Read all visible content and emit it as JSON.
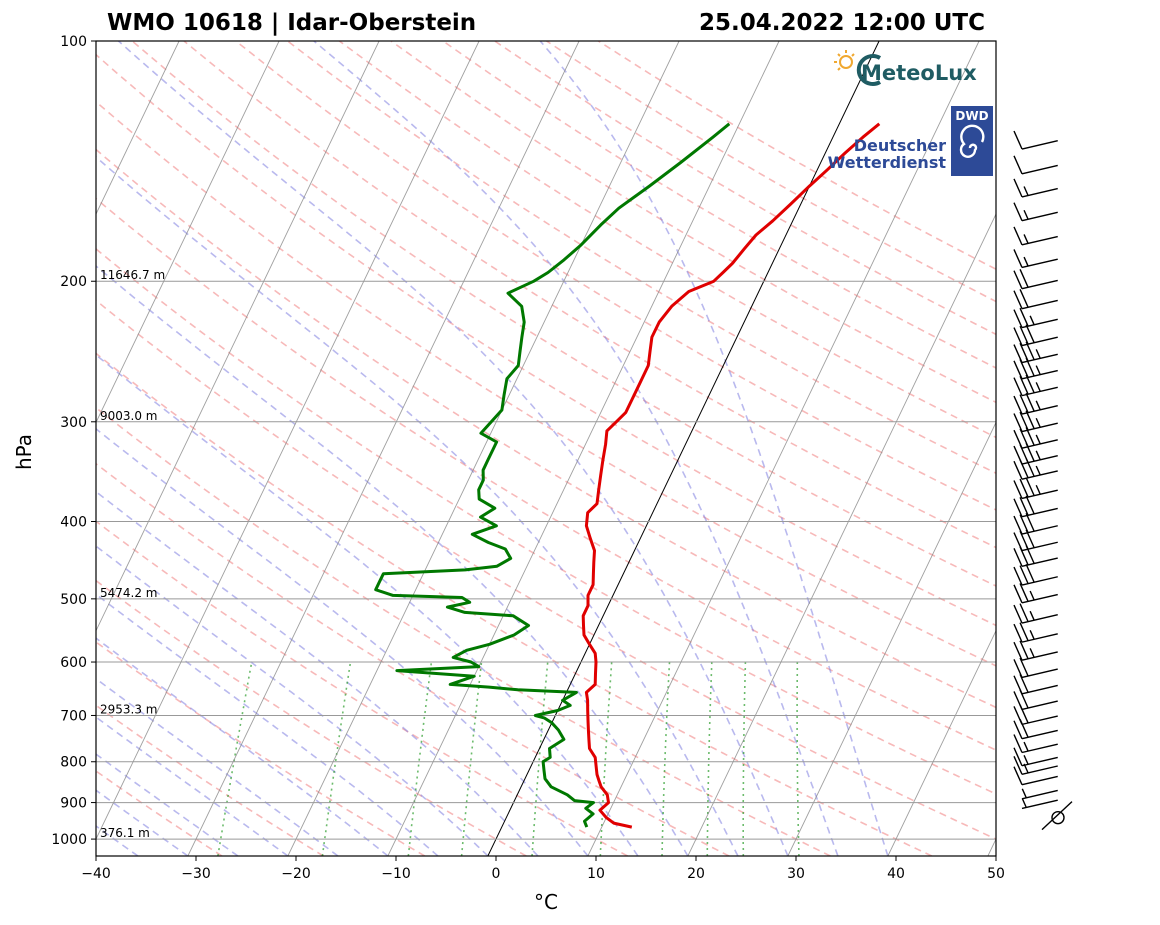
{
  "chart_data": {
    "type": "line",
    "subtype": "skew-t log-p",
    "title_left": "WMO 10618 | Idar-Oberstein",
    "title_right": "25.04.2022 12:00 UTC",
    "xlabel": "°C",
    "ylabel": "hPa",
    "xlim": [
      -40,
      50
    ],
    "ylim": [
      1050,
      100
    ],
    "y_scale": "log",
    "x_ticks": [
      -40,
      -30,
      -20,
      -10,
      0,
      10,
      20,
      30,
      40,
      50
    ],
    "x_tick_labels": [
      "−40",
      "−30",
      "−20",
      "−10",
      "0",
      "10",
      "20",
      "30",
      "40",
      "50"
    ],
    "y_ticks": [
      100,
      200,
      300,
      400,
      500,
      600,
      700,
      800,
      900,
      1000
    ],
    "y_tick_labels": [
      "100",
      "200",
      "300",
      "400",
      "500",
      "600",
      "700",
      "800",
      "900",
      "1000"
    ],
    "grid": true,
    "height_labels": [
      {
        "p": 1000,
        "text": "376.1 m"
      },
      {
        "p": 700,
        "text": "2953.3 m"
      },
      {
        "p": 500,
        "text": "5474.2 m"
      },
      {
        "p": 300,
        "text": "9003.0 m"
      },
      {
        "p": 200,
        "text": "11646.7 m"
      }
    ],
    "series": [
      {
        "color": "#e00000",
        "points": [
          [
            13,
            966
          ],
          [
            11,
            955
          ],
          [
            10,
            940
          ],
          [
            9,
            920
          ],
          [
            9.5,
            900
          ],
          [
            9,
            880
          ],
          [
            8,
            860
          ],
          [
            7.5,
            845
          ],
          [
            7,
            830
          ],
          [
            6.5,
            810
          ],
          [
            6,
            790
          ],
          [
            5,
            770
          ],
          [
            4.5,
            750
          ],
          [
            4,
            730
          ],
          [
            3.5,
            710
          ],
          [
            3,
            690
          ],
          [
            2.5,
            670
          ],
          [
            2,
            655
          ],
          [
            2.5,
            640
          ],
          [
            2,
            620
          ],
          [
            1.5,
            600
          ],
          [
            1,
            585
          ],
          [
            0,
            570
          ],
          [
            -1,
            555
          ],
          [
            -1.5,
            540
          ],
          [
            -2,
            525
          ],
          [
            -2,
            510
          ],
          [
            -2.5,
            495
          ],
          [
            -2.5,
            480
          ],
          [
            -3,
            465
          ],
          [
            -3.5,
            450
          ],
          [
            -4,
            435
          ],
          [
            -5,
            420
          ],
          [
            -6,
            405
          ],
          [
            -6.5,
            390
          ],
          [
            -6,
            380
          ],
          [
            -6.5,
            365
          ],
          [
            -7,
            350
          ],
          [
            -7.5,
            335
          ],
          [
            -8,
            320
          ],
          [
            -8.5,
            308
          ],
          [
            -8,
            300
          ],
          [
            -7.5,
            292
          ],
          [
            -7.5,
            280
          ],
          [
            -7.5,
            268
          ],
          [
            -7.5,
            255
          ],
          [
            -8,
            245
          ],
          [
            -8.5,
            235
          ],
          [
            -8.5,
            225
          ],
          [
            -8,
            215
          ],
          [
            -7,
            206
          ],
          [
            -5,
            200
          ],
          [
            -4.5,
            195
          ],
          [
            -4,
            190
          ],
          [
            -3.5,
            182
          ],
          [
            -3,
            175
          ],
          [
            -2,
            168
          ],
          [
            -1,
            160
          ],
          [
            0,
            152
          ],
          [
            1,
            145
          ],
          [
            2,
            138
          ],
          [
            3,
            132
          ],
          [
            4,
            127
          ]
        ]
      },
      {
        "color": "#007800",
        "points": [
          [
            8.5,
            966
          ],
          [
            8,
            950
          ],
          [
            8.5,
            930
          ],
          [
            7.5,
            915
          ],
          [
            8,
            900
          ],
          [
            6,
            895
          ],
          [
            5,
            880
          ],
          [
            4,
            870
          ],
          [
            3,
            860
          ],
          [
            2,
            840
          ],
          [
            1.5,
            820
          ],
          [
            1,
            800
          ],
          [
            1.5,
            790
          ],
          [
            1,
            770
          ],
          [
            2,
            750
          ],
          [
            1,
            730
          ],
          [
            0,
            715
          ],
          [
            -1,
            705
          ],
          [
            -2,
            700
          ],
          [
            -1,
            695
          ],
          [
            0,
            690
          ],
          [
            1,
            680
          ],
          [
            0,
            670
          ],
          [
            1,
            655
          ],
          [
            -5,
            650
          ],
          [
            -8,
            645
          ],
          [
            -12,
            640
          ],
          [
            -10,
            625
          ],
          [
            -18,
            615
          ],
          [
            -10,
            608
          ],
          [
            -11,
            600
          ],
          [
            -13,
            592
          ],
          [
            -12,
            580
          ],
          [
            -10,
            570
          ],
          [
            -8,
            555
          ],
          [
            -7,
            540
          ],
          [
            -9,
            525
          ],
          [
            -14,
            520
          ],
          [
            -16,
            512
          ],
          [
            -14,
            505
          ],
          [
            -15,
            498
          ],
          [
            -22,
            495
          ],
          [
            -24,
            487
          ],
          [
            -24,
            478
          ],
          [
            -24,
            465
          ],
          [
            -16,
            460
          ],
          [
            -13,
            455
          ],
          [
            -12,
            445
          ],
          [
            -13,
            433
          ],
          [
            -15,
            425
          ],
          [
            -17,
            415
          ],
          [
            -15,
            405
          ],
          [
            -17,
            395
          ],
          [
            -16,
            385
          ],
          [
            -18,
            375
          ],
          [
            -18.5,
            365
          ],
          [
            -18.5,
            355
          ],
          [
            -19,
            345
          ],
          [
            -19,
            335
          ],
          [
            -19,
            325
          ],
          [
            -19,
            318
          ],
          [
            -21,
            310
          ],
          [
            -20.5,
            300
          ],
          [
            -20,
            290
          ],
          [
            -20.5,
            278
          ],
          [
            -21,
            265
          ],
          [
            -20.5,
            255
          ],
          [
            -21,
            245
          ],
          [
            -21.5,
            235
          ],
          [
            -22,
            225
          ],
          [
            -23,
            215
          ],
          [
            -25,
            207
          ],
          [
            -23,
            200
          ],
          [
            -22,
            195
          ],
          [
            -21,
            188
          ],
          [
            -20,
            180
          ],
          [
            -19,
            170
          ],
          [
            -18,
            162
          ],
          [
            -16,
            152
          ],
          [
            -14,
            142
          ],
          [
            -12,
            132
          ],
          [
            -11,
            127
          ]
        ]
      }
    ],
    "wind_barbs_kt": [
      {
        "p": 940,
        "speed": 0
      },
      {
        "p": 905,
        "speed": 5
      },
      {
        "p": 880,
        "speed": 5
      },
      {
        "p": 845,
        "speed": 10
      },
      {
        "p": 820,
        "speed": 15
      },
      {
        "p": 800,
        "speed": 15
      },
      {
        "p": 770,
        "speed": 15
      },
      {
        "p": 740,
        "speed": 20
      },
      {
        "p": 710,
        "speed": 20
      },
      {
        "p": 680,
        "speed": 20
      },
      {
        "p": 650,
        "speed": 20
      },
      {
        "p": 620,
        "speed": 20
      },
      {
        "p": 590,
        "speed": 25
      },
      {
        "p": 560,
        "speed": 25
      },
      {
        "p": 530,
        "speed": 25
      },
      {
        "p": 500,
        "speed": 25
      },
      {
        "p": 475,
        "speed": 30
      },
      {
        "p": 450,
        "speed": 30
      },
      {
        "p": 430,
        "speed": 30
      },
      {
        "p": 410,
        "speed": 30
      },
      {
        "p": 390,
        "speed": 30
      },
      {
        "p": 370,
        "speed": 35
      },
      {
        "p": 350,
        "speed": 35
      },
      {
        "p": 335,
        "speed": 35
      },
      {
        "p": 320,
        "speed": 35
      },
      {
        "p": 305,
        "speed": 35
      },
      {
        "p": 290,
        "speed": 35
      },
      {
        "p": 275,
        "speed": 35
      },
      {
        "p": 262,
        "speed": 35
      },
      {
        "p": 250,
        "speed": 35
      },
      {
        "p": 238,
        "speed": 30
      },
      {
        "p": 226,
        "speed": 25
      },
      {
        "p": 214,
        "speed": 20
      },
      {
        "p": 202,
        "speed": 20
      },
      {
        "p": 190,
        "speed": 15
      },
      {
        "p": 178,
        "speed": 15
      },
      {
        "p": 166,
        "speed": 15
      },
      {
        "p": 155,
        "speed": 15
      },
      {
        "p": 145,
        "speed": 10
      },
      {
        "p": 135,
        "speed": 10
      }
    ]
  },
  "logos": {
    "meteolux": "MeteoLux",
    "dwd_badge": "DWD",
    "dwd_line1": "Deutscher",
    "dwd_line2": "Wetterdienst"
  }
}
